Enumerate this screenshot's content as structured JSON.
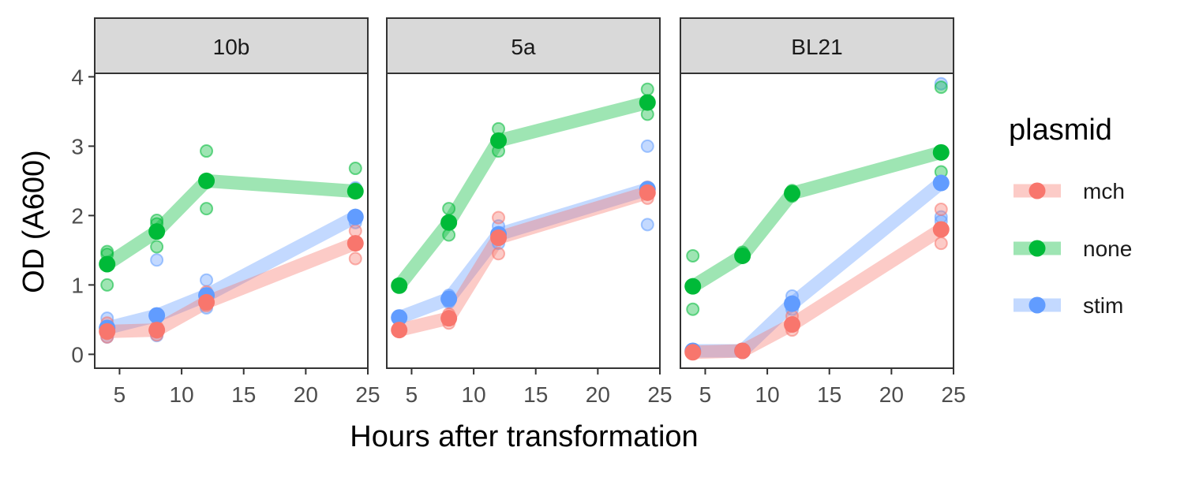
{
  "chart_data": {
    "type": "line",
    "facets": [
      "10b",
      "5a",
      "BL21"
    ],
    "xlabel": "Hours after transformation",
    "ylabel": "OD (A600)",
    "x_ticks": [
      5,
      10,
      15,
      20,
      25
    ],
    "y_ticks": [
      0,
      1,
      2,
      3,
      4
    ],
    "xlim": [
      3,
      25
    ],
    "ylim": [
      -0.2,
      4.05
    ],
    "legend": {
      "title": "plasmid",
      "position": "right",
      "entries": [
        "mch",
        "none",
        "stim"
      ]
    },
    "colors": {
      "mch": "#F8766D",
      "none": "#00BA38",
      "stim": "#619CFF"
    },
    "grid": false,
    "panels": [
      {
        "facet": "10b",
        "series": [
          {
            "name": "mch",
            "mean": [
              [
                4,
                0.33
              ],
              [
                8,
                0.35
              ],
              [
                12,
                0.75
              ],
              [
                24,
                1.6
              ]
            ],
            "replicates": [
              [
                4,
                0.25
              ],
              [
                4,
                0.3
              ],
              [
                4,
                0.45
              ],
              [
                8,
                0.28
              ],
              [
                8,
                0.32
              ],
              [
                8,
                0.4
              ],
              [
                12,
                0.7
              ],
              [
                12,
                0.78
              ],
              [
                12,
                0.9
              ],
              [
                24,
                1.38
              ],
              [
                24,
                1.62
              ],
              [
                24,
                1.78
              ]
            ]
          },
          {
            "name": "none",
            "mean": [
              [
                4,
                1.3
              ],
              [
                8,
                1.77
              ],
              [
                12,
                2.5
              ],
              [
                24,
                2.35
              ]
            ],
            "replicates": [
              [
                4,
                1.0
              ],
              [
                4,
                1.44
              ],
              [
                4,
                1.48
              ],
              [
                8,
                1.55
              ],
              [
                8,
                1.88
              ],
              [
                8,
                1.93
              ],
              [
                12,
                2.1
              ],
              [
                12,
                2.5
              ],
              [
                12,
                2.93
              ],
              [
                24,
                2.0
              ],
              [
                24,
                2.38
              ],
              [
                24,
                2.68
              ]
            ]
          },
          {
            "name": "stim",
            "mean": [
              [
                4,
                0.38
              ],
              [
                8,
                0.56
              ],
              [
                12,
                0.85
              ],
              [
                24,
                1.98
              ]
            ],
            "replicates": [
              [
                4,
                0.25
              ],
              [
                4,
                0.37
              ],
              [
                4,
                0.52
              ],
              [
                8,
                0.27
              ],
              [
                8,
                0.55
              ],
              [
                8,
                1.36
              ],
              [
                12,
                0.67
              ],
              [
                12,
                0.85
              ],
              [
                12,
                1.07
              ],
              [
                24,
                1.9
              ],
              [
                24,
                2.0
              ],
              [
                24,
                2.4
              ]
            ]
          }
        ]
      },
      {
        "facet": "5a",
        "series": [
          {
            "name": "mch",
            "mean": [
              [
                4,
                0.35
              ],
              [
                8,
                0.52
              ],
              [
                12,
                1.68
              ],
              [
                24,
                2.33
              ]
            ],
            "replicates": [
              [
                4,
                0.33
              ],
              [
                4,
                0.35
              ],
              [
                4,
                0.37
              ],
              [
                8,
                0.45
              ],
              [
                8,
                0.52
              ],
              [
                8,
                0.58
              ],
              [
                12,
                1.45
              ],
              [
                12,
                1.68
              ],
              [
                12,
                1.97
              ],
              [
                24,
                2.25
              ],
              [
                24,
                2.33
              ],
              [
                24,
                2.41
              ]
            ]
          },
          {
            "name": "none",
            "mean": [
              [
                4,
                0.99
              ],
              [
                8,
                1.9
              ],
              [
                12,
                3.08
              ],
              [
                24,
                3.63
              ]
            ],
            "replicates": [
              [
                4,
                0.98
              ],
              [
                4,
                0.99
              ],
              [
                4,
                1.0
              ],
              [
                8,
                1.72
              ],
              [
                8,
                1.9
              ],
              [
                8,
                2.1
              ],
              [
                12,
                2.93
              ],
              [
                12,
                3.08
              ],
              [
                12,
                3.25
              ],
              [
                24,
                3.46
              ],
              [
                24,
                3.63
              ],
              [
                24,
                3.82
              ]
            ]
          },
          {
            "name": "stim",
            "mean": [
              [
                4,
                0.53
              ],
              [
                8,
                0.8
              ],
              [
                12,
                1.73
              ],
              [
                24,
                2.38
              ]
            ],
            "replicates": [
              [
                4,
                0.51
              ],
              [
                4,
                0.53
              ],
              [
                4,
                0.55
              ],
              [
                8,
                0.75
              ],
              [
                8,
                0.8
              ],
              [
                8,
                0.85
              ],
              [
                12,
                1.6
              ],
              [
                12,
                1.73
              ],
              [
                12,
                1.85
              ],
              [
                24,
                1.87
              ],
              [
                24,
                2.38
              ],
              [
                24,
                3.0
              ]
            ]
          }
        ]
      },
      {
        "facet": "BL21",
        "series": [
          {
            "name": "mch",
            "mean": [
              [
                4,
                0.03
              ],
              [
                8,
                0.05
              ],
              [
                12,
                0.43
              ],
              [
                24,
                1.8
              ]
            ],
            "replicates": [
              [
                4,
                0.02
              ],
              [
                4,
                0.03
              ],
              [
                4,
                0.04
              ],
              [
                8,
                0.04
              ],
              [
                8,
                0.05
              ],
              [
                8,
                0.06
              ],
              [
                12,
                0.35
              ],
              [
                12,
                0.43
              ],
              [
                12,
                0.55
              ],
              [
                24,
                1.6
              ],
              [
                24,
                1.8
              ],
              [
                24,
                2.09
              ]
            ]
          },
          {
            "name": "none",
            "mean": [
              [
                4,
                0.98
              ],
              [
                8,
                1.42
              ],
              [
                12,
                2.32
              ],
              [
                24,
                2.91
              ]
            ],
            "replicates": [
              [
                4,
                0.65
              ],
              [
                4,
                0.98
              ],
              [
                4,
                1.42
              ],
              [
                8,
                1.4
              ],
              [
                8,
                1.42
              ],
              [
                8,
                1.47
              ],
              [
                12,
                2.28
              ],
              [
                12,
                2.32
              ],
              [
                12,
                2.36
              ],
              [
                24,
                2.45
              ],
              [
                24,
                2.63
              ],
              [
                24,
                3.85
              ]
            ]
          },
          {
            "name": "stim",
            "mean": [
              [
                4,
                0.05
              ],
              [
                8,
                0.05
              ],
              [
                12,
                0.73
              ],
              [
                24,
                2.47
              ]
            ],
            "replicates": [
              [
                4,
                0.04
              ],
              [
                4,
                0.05
              ],
              [
                4,
                0.06
              ],
              [
                8,
                0.04
              ],
              [
                8,
                0.05
              ],
              [
                8,
                0.06
              ],
              [
                12,
                0.65
              ],
              [
                12,
                0.73
              ],
              [
                12,
                0.84
              ],
              [
                24,
                1.92
              ],
              [
                24,
                1.98
              ],
              [
                24,
                3.9
              ]
            ]
          }
        ]
      }
    ]
  }
}
